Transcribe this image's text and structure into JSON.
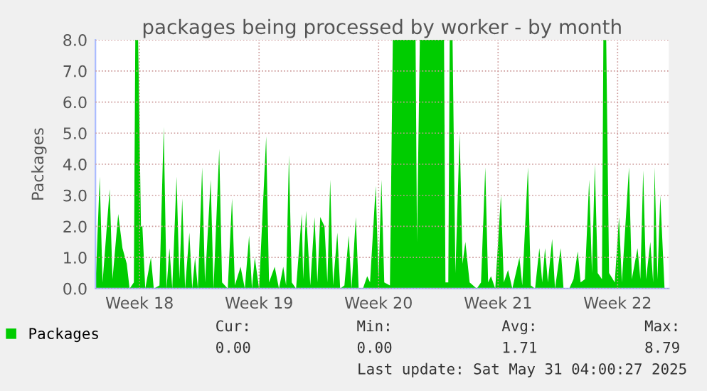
{
  "chart_data": {
    "type": "area",
    "title": "packages being processed by worker - by month",
    "ylabel": "Packages",
    "x": [
      "2025-04-27T12:00",
      "2025-04-27T18:00",
      "2025-04-27T22:00",
      "2025-04-28T08:00",
      "2025-04-28T12:00",
      "2025-04-28T20:00",
      "2025-04-29T02:00",
      "2025-04-29T08:00",
      "2025-04-29T12:00",
      "2025-04-29T18:00",
      "2025-04-29T20:00",
      "2025-04-30T00:00",
      "2025-04-30T04:00",
      "2025-04-30T06:00",
      "2025-04-30T10:00",
      "2025-04-30T18:00",
      "2025-04-30T22:00",
      "2025-05-01T06:00",
      "2025-05-01T12:00",
      "2025-05-01T16:00",
      "2025-05-01T20:00",
      "2025-05-02T00:00",
      "2025-05-02T06:00",
      "2025-05-02T10:00",
      "2025-05-02T14:00",
      "2025-05-02T18:00",
      "2025-05-03T00:00",
      "2025-05-03T04:00",
      "2025-05-03T08:00",
      "2025-05-03T12:00",
      "2025-05-03T18:00",
      "2025-05-03T22:00",
      "2025-05-04T06:00",
      "2025-05-04T10:00",
      "2025-05-04T18:00",
      "2025-05-04T22:00",
      "2025-05-05T06:00",
      "2025-05-05T12:00",
      "2025-05-05T16:00",
      "2025-05-06T00:00",
      "2025-05-06T06:00",
      "2025-05-06T12:00",
      "2025-05-06T16:00",
      "2025-05-06T20:00",
      "2025-05-07T02:00",
      "2025-05-07T12:00",
      "2025-05-07T16:00",
      "2025-05-08T00:00",
      "2025-05-08T06:00",
      "2025-05-08T12:00",
      "2025-05-08T16:00",
      "2025-05-08T20:00",
      "2025-05-09T00:00",
      "2025-05-09T06:00",
      "2025-05-09T14:00",
      "2025-05-09T16:00",
      "2025-05-09T20:00",
      "2025-05-10T02:00",
      "2025-05-10T08:00",
      "2025-05-10T12:00",
      "2025-05-10T16:00",
      "2025-05-10T22:00",
      "2025-05-11T02:00",
      "2025-05-11T06:00",
      "2025-05-11T10:00",
      "2025-05-11T16:00",
      "2025-05-11T20:00",
      "2025-05-12T02:00",
      "2025-05-12T08:00",
      "2025-05-12T12:00",
      "2025-05-12T18:00",
      "2025-05-12T22:00",
      "2025-05-13T04:00",
      "2025-05-13T10:00",
      "2025-05-13T14:00",
      "2025-05-13T22:00",
      "2025-05-14T02:00",
      "2025-05-14T06:00",
      "2025-05-14T10:00",
      "2025-05-14T18:00",
      "2025-05-14T22:00",
      "2025-05-16T06:00",
      "2025-05-16T08:00",
      "2025-05-16T12:00",
      "2025-05-17T22:00",
      "2025-05-18T00:00",
      "2025-05-18T04:00",
      "2025-05-18T06:00",
      "2025-05-18T10:00",
      "2025-05-18T14:00",
      "2025-05-18T20:00",
      "2025-05-19T00:00",
      "2025-05-19T04:00",
      "2025-05-19T10:00",
      "2025-05-19T20:00",
      "2025-05-20T02:00",
      "2025-05-20T08:00",
      "2025-05-20T12:00",
      "2025-05-20T16:00",
      "2025-05-20T22:00",
      "2025-05-21T06:00",
      "2025-05-21T10:00",
      "2025-05-21T16:00",
      "2025-05-21T22:00",
      "2025-05-22T08:00",
      "2025-05-22T12:00",
      "2025-05-22T20:00",
      "2025-05-23T00:00",
      "2025-05-23T06:00",
      "2025-05-23T12:00",
      "2025-05-23T16:00",
      "2025-05-23T20:00",
      "2025-05-24T00:00",
      "2025-05-24T06:00",
      "2025-05-24T10:00",
      "2025-05-24T18:00",
      "2025-05-24T22:00",
      "2025-05-25T06:00",
      "2025-05-25T12:00",
      "2025-05-25T18:00",
      "2025-05-25T22:00",
      "2025-05-26T04:00",
      "2025-05-26T10:00",
      "2025-05-26T14:00",
      "2025-05-26T18:00",
      "2025-05-26T22:00",
      "2025-05-27T04:00",
      "2025-05-27T06:00",
      "2025-05-27T10:00",
      "2025-05-27T14:00",
      "2025-05-27T22:00",
      "2025-05-28T04:00",
      "2025-05-28T08:00",
      "2025-05-28T18:00",
      "2025-05-28T22:00",
      "2025-05-29T06:00",
      "2025-05-29T10:00",
      "2025-05-29T14:00",
      "2025-05-29T18:00",
      "2025-05-30T00:00",
      "2025-05-30T04:00",
      "2025-05-30T06:00",
      "2025-05-30T10:00",
      "2025-05-30T14:00",
      "2025-05-30T20:00"
    ],
    "series": [
      {
        "name": "Packages",
        "color": "#00cc00",
        "values": [
          0,
          3.6,
          0.2,
          3.2,
          0.3,
          2.4,
          1.3,
          0.8,
          0,
          0.2,
          8,
          8,
          2.0,
          2.0,
          0,
          1.0,
          0,
          0.1,
          5.2,
          0,
          1.3,
          0,
          3.6,
          0.3,
          2.9,
          0,
          1.8,
          0,
          1.0,
          0,
          3.9,
          0.2,
          3.5,
          0,
          4.5,
          0.2,
          0,
          2.9,
          0.1,
          0.7,
          0,
          1.7,
          0,
          1.0,
          0,
          4.9,
          0.2,
          0.7,
          0,
          0.7,
          0.1,
          4.3,
          0.2,
          0,
          2.4,
          0.3,
          2.5,
          0.1,
          2.3,
          0.2,
          2.3,
          2.0,
          0.2,
          3.5,
          0.1,
          1.8,
          0,
          0.1,
          1.7,
          0,
          2.3,
          0,
          0,
          0.4,
          0.2,
          3.3,
          0.3,
          3.5,
          0.2,
          0.1,
          8,
          8,
          1.5,
          8,
          8,
          0.2,
          0.2,
          8,
          8,
          0.5,
          5.0,
          0.8,
          1.5,
          0.2,
          0,
          0.2,
          3.9,
          0.2,
          0.4,
          0,
          3.0,
          0.2,
          0.6,
          0,
          1.0,
          0.1,
          3.9,
          0.1,
          0,
          1.3,
          0.2,
          1.3,
          0.2,
          1.6,
          0,
          1.3,
          0,
          0,
          0.3,
          1.2,
          0.2,
          0.3,
          3.5,
          0.5,
          4.0,
          0.5,
          0.3,
          8,
          8,
          0.5,
          0.2,
          2.3,
          0.2,
          3.9,
          0.3,
          1.3,
          0.3,
          3.8,
          0.3,
          1.5,
          0.2,
          3.9,
          0.3,
          3.0,
          0
        ]
      }
    ],
    "xlim": [
      "2025-04-27T12:00",
      "2025-05-31T02:00"
    ],
    "xticks": [
      {
        "value": "2025-04-30T02:00",
        "label": "Week 18"
      },
      {
        "value": "2025-05-07T02:00",
        "label": "Week 19"
      },
      {
        "value": "2025-05-14T02:00",
        "label": "Week 20"
      },
      {
        "value": "2025-05-21T02:00",
        "label": "Week 21"
      },
      {
        "value": "2025-05-28T02:00",
        "label": "Week 22"
      }
    ],
    "ylim": [
      0,
      8
    ],
    "yticks": [
      {
        "value": 0,
        "label": "0.0"
      },
      {
        "value": 1,
        "label": "1.0"
      },
      {
        "value": 2,
        "label": "2.0"
      },
      {
        "value": 3,
        "label": "3.0"
      },
      {
        "value": 4,
        "label": "4.0"
      },
      {
        "value": 5,
        "label": "5.0"
      },
      {
        "value": 6,
        "label": "6.0"
      },
      {
        "value": 7,
        "label": "7.0"
      },
      {
        "value": 8,
        "label": "8.0"
      }
    ],
    "grid": true,
    "line_style": "dotted",
    "legend": "bottom left",
    "annotations": [
      "Cur:",
      "Min:",
      "Avg:",
      "Max:",
      "0.00",
      "0.00",
      "1.71",
      "8.79",
      "Last update: Sat May 31 04:00:27 2025"
    ]
  }
}
